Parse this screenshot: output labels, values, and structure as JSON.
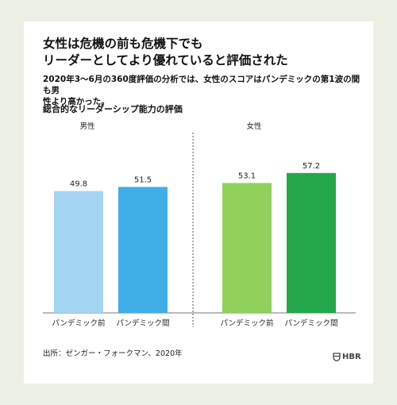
{
  "title_line1": "女性は危機の前も危機下でも",
  "title_line2": "リーダーとしてより優れていると評価された",
  "subtitle_line1": "2020年3～6月の360度評価の分析では、女性のスコアはパンデミックの第1波の間も男",
  "subtitle_line2": "性より高かった。",
  "source": "出所：ゼンガー・フォークマン、2020年",
  "logo_text": "HBR",
  "chart_data": {
    "type": "bar",
    "title": "総合的なリーダーシップ能力の評価",
    "groups": [
      {
        "name": "男性",
        "bars": [
          {
            "label": "パンデミック前",
            "value": 49.8,
            "color": "#a3d5f2"
          },
          {
            "label": "パンデミック間",
            "value": 51.5,
            "color": "#3faee6"
          }
        ]
      },
      {
        "name": "女性",
        "bars": [
          {
            "label": "パンデミック前",
            "value": 53.1,
            "color": "#8fd15b"
          },
          {
            "label": "パンデミック間",
            "value": 57.2,
            "color": "#22a84a"
          }
        ]
      }
    ]
  }
}
